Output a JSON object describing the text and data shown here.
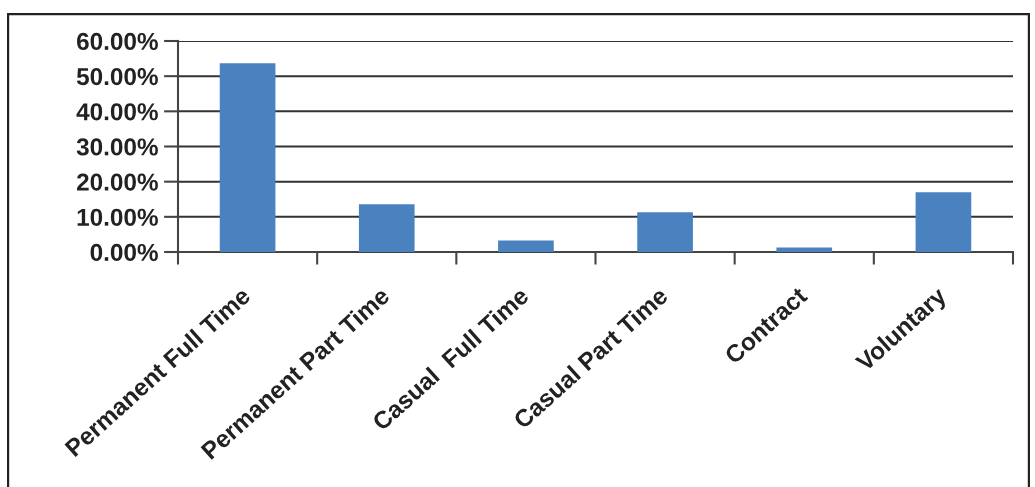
{
  "chart_data": {
    "type": "bar",
    "categories": [
      "Permanent Full Time",
      "Permanent Part Time",
      "Casual  Full Time",
      "Casual Part Time",
      "Contract",
      "Voluntary"
    ],
    "values": [
      53.7,
      13.6,
      3.3,
      11.3,
      1.3,
      17.0
    ],
    "color": "#4a81bf",
    "ylim": [
      0,
      60
    ],
    "yticks": [
      {
        "value": 0,
        "label": "0.00%"
      },
      {
        "value": 10,
        "label": "10.00%"
      },
      {
        "value": 20,
        "label": "20.00%"
      },
      {
        "value": 30,
        "label": "30.00%"
      },
      {
        "value": 40,
        "label": "40.00%"
      },
      {
        "value": 50,
        "label": "50.00%"
      },
      {
        "value": 60,
        "label": "60.00%"
      }
    ],
    "grid": "y"
  }
}
